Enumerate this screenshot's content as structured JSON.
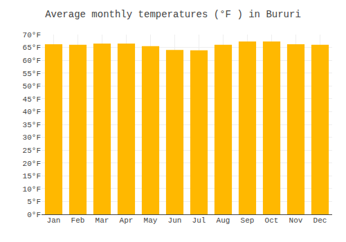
{
  "chart_data": {
    "type": "bar",
    "title": "Average monthly temperatures (°F ) in Bururi",
    "categories": [
      "Jan",
      "Feb",
      "Mar",
      "Apr",
      "May",
      "Jun",
      "Jul",
      "Aug",
      "Sep",
      "Oct",
      "Nov",
      "Dec"
    ],
    "values": [
      66.2,
      66.0,
      66.5,
      66.5,
      65.5,
      64.0,
      63.9,
      66.0,
      67.3,
      67.3,
      66.2,
      66.0
    ],
    "color": "#FFB800",
    "ylim": [
      0,
      70
    ],
    "yticks": [
      {
        "value": 0,
        "label": "0°F"
      },
      {
        "value": 5,
        "label": "5°F"
      },
      {
        "value": 10,
        "label": "10°F"
      },
      {
        "value": 15,
        "label": "15°F"
      },
      {
        "value": 20,
        "label": "20°F"
      },
      {
        "value": 25,
        "label": "25°F"
      },
      {
        "value": 30,
        "label": "30°F"
      },
      {
        "value": 35,
        "label": "35°F"
      },
      {
        "value": 40,
        "label": "40°F"
      },
      {
        "value": 45,
        "label": "45°F"
      },
      {
        "value": 50,
        "label": "50°F"
      },
      {
        "value": 55,
        "label": "55°F"
      },
      {
        "value": 60,
        "label": "60°F"
      },
      {
        "value": 65,
        "label": "65°F"
      },
      {
        "value": 70,
        "label": "70°F"
      }
    ],
    "grid": true
  }
}
